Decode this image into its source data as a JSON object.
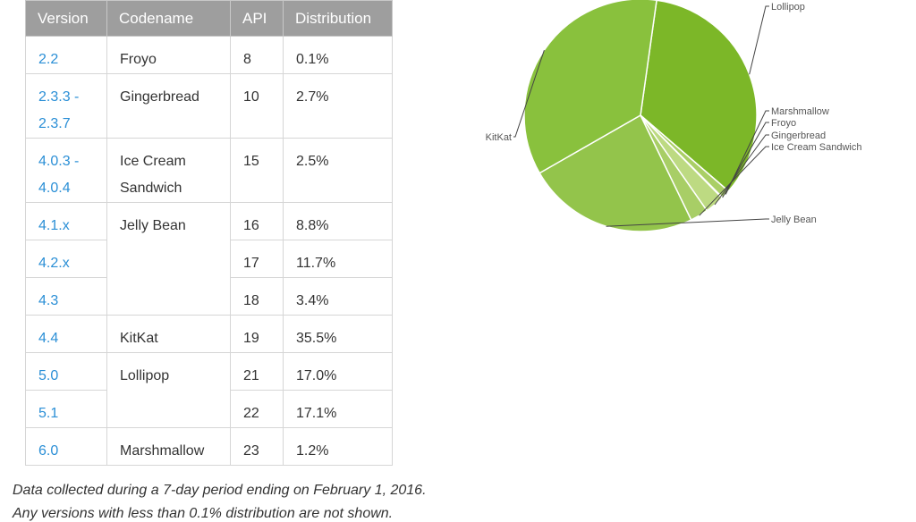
{
  "table": {
    "headers": [
      "Version",
      "Codename",
      "API",
      "Distribution"
    ],
    "rows": [
      {
        "version": "2.2",
        "codename": "Froyo",
        "api": "8",
        "distribution": "0.1%"
      },
      {
        "version": "2.3.3 - 2.3.7",
        "codename": "Gingerbread",
        "api": "10",
        "distribution": "2.7%"
      },
      {
        "version": "4.0.3 - 4.0.4",
        "codename": "Ice Cream Sandwich",
        "api": "15",
        "distribution": "2.5%"
      },
      {
        "version": "4.1.x",
        "codename": "Jelly Bean",
        "api": "16",
        "distribution": "8.8%"
      },
      {
        "version": "4.2.x",
        "codename": "",
        "api": "17",
        "distribution": "11.7%"
      },
      {
        "version": "4.3",
        "codename": "",
        "api": "18",
        "distribution": "3.4%"
      },
      {
        "version": "4.4",
        "codename": "KitKat",
        "api": "19",
        "distribution": "35.5%"
      },
      {
        "version": "5.0",
        "codename": "Lollipop",
        "api": "21",
        "distribution": "17.0%"
      },
      {
        "version": "5.1",
        "codename": "",
        "api": "22",
        "distribution": "17.1%"
      },
      {
        "version": "6.0",
        "codename": "Marshmallow",
        "api": "23",
        "distribution": "1.2%"
      }
    ]
  },
  "chart_data": {
    "type": "pie",
    "categories": [
      "Lollipop",
      "Marshmallow",
      "Froyo",
      "Gingerbread",
      "Ice Cream Sandwich",
      "Jelly Bean",
      "KitKat"
    ],
    "values": [
      34.1,
      1.2,
      0.1,
      2.7,
      2.5,
      23.9,
      35.5
    ],
    "colors": [
      "#7cb728",
      "#aacf66",
      "#b4d574",
      "#bdda82",
      "#a8ce66",
      "#93c44b",
      "#89c13d"
    ],
    "leader_color": "#444444"
  },
  "footer": {
    "line1": "Data collected during a 7-day period ending on February 1, 2016.",
    "line2": "Any versions with less than 0.1% distribution are not shown."
  }
}
